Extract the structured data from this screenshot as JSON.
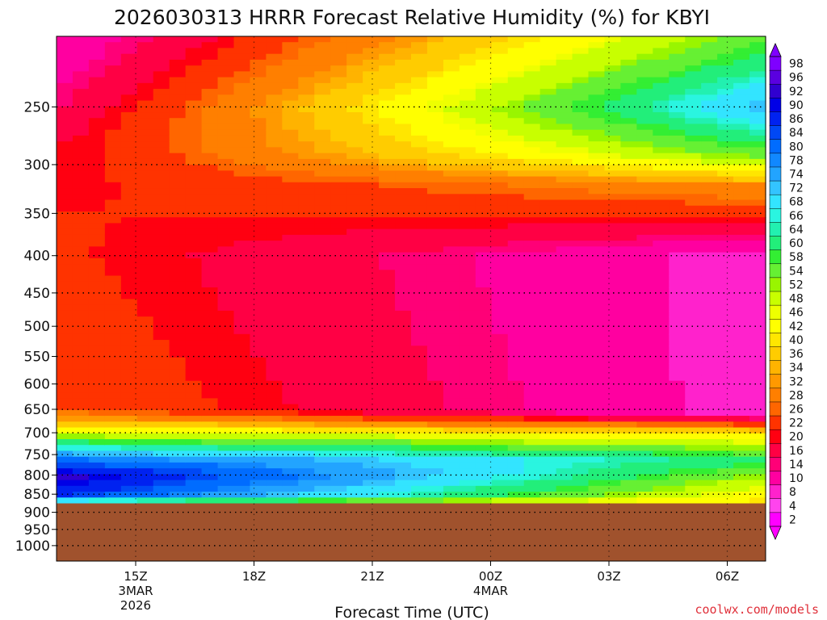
{
  "chart_data": {
    "type": "heatmap",
    "title": "2026030313 HRRR Forecast Relative Humidity (%) for KBYI",
    "xlabel": "Forecast Time (UTC)",
    "ylabel": "",
    "y_scale": "log",
    "y_ticks": [
      250,
      300,
      350,
      400,
      450,
      500,
      550,
      600,
      650,
      700,
      750,
      800,
      850,
      900,
      950,
      1000
    ],
    "x_ticks": [
      {
        "label": "15Z",
        "sub1": "3MAR",
        "sub2": "2026"
      },
      {
        "label": "18Z",
        "sub1": "",
        "sub2": ""
      },
      {
        "label": "21Z",
        "sub1": "",
        "sub2": ""
      },
      {
        "label": "00Z",
        "sub1": "4MAR",
        "sub2": ""
      },
      {
        "label": "03Z",
        "sub1": "",
        "sub2": ""
      },
      {
        "label": "06Z",
        "sub1": "",
        "sub2": ""
      }
    ],
    "grid": true,
    "ground_level_hpa": 875,
    "ground_color": "#a0522d",
    "colorbar_levels": [
      98,
      96,
      92,
      90,
      86,
      84,
      80,
      78,
      74,
      72,
      68,
      66,
      64,
      60,
      58,
      54,
      52,
      48,
      46,
      42,
      40,
      36,
      34,
      32,
      28,
      26,
      22,
      20,
      16,
      14,
      10,
      8,
      4,
      2
    ],
    "colorbar_colors": [
      "#7f00ff",
      "#5a00e0",
      "#3000d0",
      "#0000e6",
      "#0022f0",
      "#0048f5",
      "#006cff",
      "#1188ff",
      "#22a4ff",
      "#33c4ff",
      "#33e4ff",
      "#2af5e0",
      "#22f0b0",
      "#22ee7a",
      "#33ee33",
      "#66f033",
      "#99f500",
      "#c8ff00",
      "#eeff00",
      "#ffff00",
      "#ffe600",
      "#ffcc00",
      "#ffb300",
      "#ff9900",
      "#ff7f00",
      "#ff6600",
      "#ff3300",
      "#ff0011",
      "#ff0044",
      "#ff0077",
      "#ff00a0",
      "#ff22cc",
      "#ff44ee",
      "#ff00ff"
    ],
    "rh_profile_start": [
      {
        "p": 200,
        "rh": 10
      },
      {
        "p": 280,
        "rh": 20
      },
      {
        "p": 350,
        "rh": 22
      },
      {
        "p": 650,
        "rh": 26
      },
      {
        "p": 690,
        "rh": 42
      },
      {
        "p": 720,
        "rh": 60
      },
      {
        "p": 760,
        "rh": 80
      },
      {
        "p": 800,
        "rh": 94
      },
      {
        "p": 850,
        "rh": 88
      },
      {
        "p": 875,
        "rh": 60
      }
    ],
    "rh_profile_end": [
      {
        "p": 200,
        "rh": 56
      },
      {
        "p": 250,
        "rh": 74
      },
      {
        "p": 290,
        "rh": 56
      },
      {
        "p": 320,
        "rh": 32
      },
      {
        "p": 360,
        "rh": 20
      },
      {
        "p": 400,
        "rh": 8
      },
      {
        "p": 660,
        "rh": 8
      },
      {
        "p": 700,
        "rh": 40
      },
      {
        "p": 760,
        "rh": 62
      },
      {
        "p": 820,
        "rh": 50
      },
      {
        "p": 875,
        "rh": 40
      }
    ]
  },
  "credit": "coolwx.com/models"
}
